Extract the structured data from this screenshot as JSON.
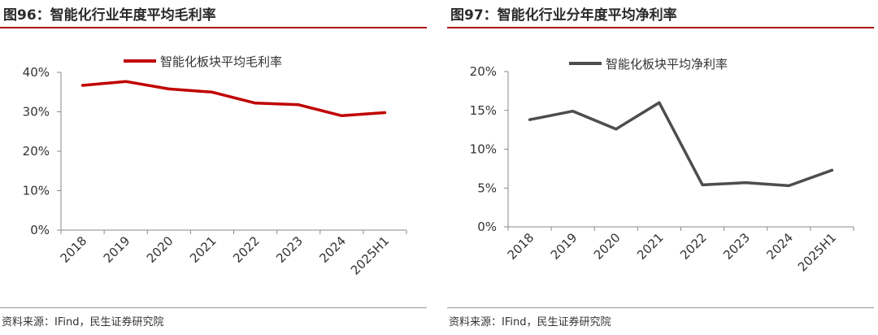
{
  "charts": [
    {
      "title": "图96：智能化行业年度平均毛利率",
      "source": "资料来源：IFind，民生证券研究院",
      "chart_data": {
        "type": "line",
        "categories": [
          "2018",
          "2019",
          "2020",
          "2021",
          "2022",
          "2023",
          "2024",
          "2025H1"
        ],
        "series": [
          {
            "name": "智能化板块平均毛利率",
            "color": "#c00000",
            "values": [
              36.7,
              37.7,
              35.8,
              35.0,
              32.2,
              31.8,
              29.0,
              29.8
            ]
          }
        ],
        "yticks": [
          "0%",
          "10%",
          "20%",
          "30%",
          "40%"
        ],
        "ylim": [
          0,
          40
        ],
        "ylabel": "",
        "xlabel": "",
        "grid": false,
        "legend": "top-center"
      }
    },
    {
      "title": "图97：智能化行业分年度平均净利率",
      "source": "资料来源：IFind，民生证券研究院",
      "chart_data": {
        "type": "line",
        "categories": [
          "2018",
          "2019",
          "2020",
          "2021",
          "2022",
          "2023",
          "2024",
          "2025H1"
        ],
        "series": [
          {
            "name": "智能化板块平均净利率",
            "color": "#4d4d4d",
            "values": [
              13.8,
              14.9,
              12.6,
              16.0,
              5.4,
              5.7,
              5.3,
              7.3
            ]
          }
        ],
        "yticks": [
          "0%",
          "5%",
          "10%",
          "15%",
          "20%"
        ],
        "ylim": [
          0,
          20
        ],
        "ylabel": "",
        "xlabel": "",
        "grid": false,
        "legend": "top-center"
      }
    }
  ]
}
